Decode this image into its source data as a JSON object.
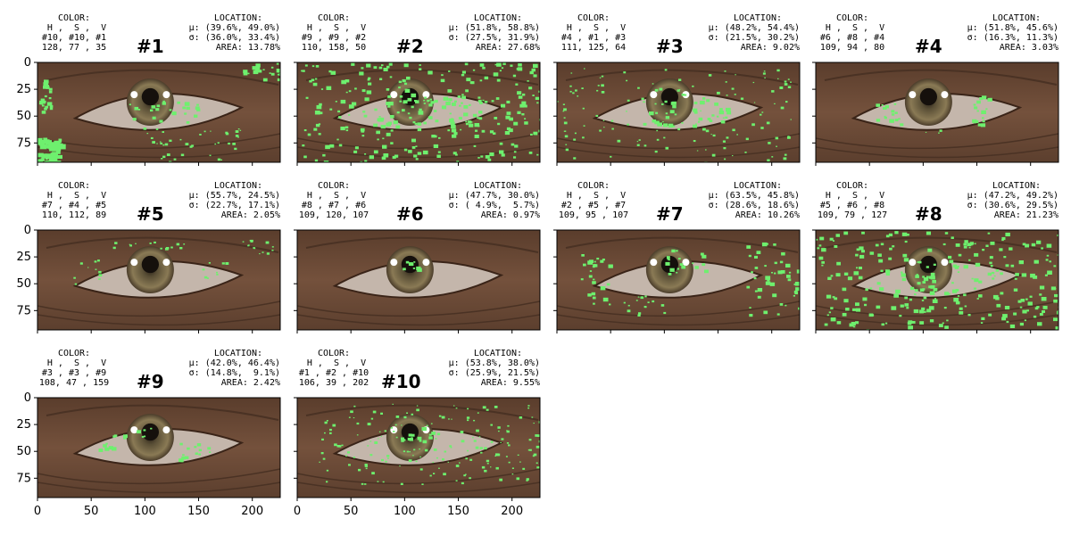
{
  "chart_data": {
    "type": "image-grid",
    "ylim": [
      0,
      93
    ],
    "xlim": [
      0,
      226
    ],
    "yticks": [
      "0",
      "25",
      "50",
      "75"
    ],
    "xticks": [
      "0",
      "50",
      "100",
      "150",
      "200"
    ],
    "highlight_color": "#6ef06e",
    "panels": [
      {
        "title": "#1",
        "color": {
          "header": "COLOR:",
          "hsv": " H ,  S ,  V",
          "bins": "#10, #10, #1",
          "values": "128, 77 , 35"
        },
        "location": {
          "header": "LOCATION:",
          "mu": "μ: (39.6%, 49.0%)",
          "sigma": "σ: (36.0%, 33.4%)",
          "area": "AREA: 13.78%"
        }
      },
      {
        "title": "#2",
        "color": {
          "header": "COLOR:",
          "hsv": " H ,  S ,  V",
          "bins": "#9 , #9 , #2",
          "values": "110, 158, 50"
        },
        "location": {
          "header": "LOCATION:",
          "mu": "μ: (51.8%, 58.8%)",
          "sigma": "σ: (27.5%, 31.9%)",
          "area": "AREA: 27.68%"
        }
      },
      {
        "title": "#3",
        "color": {
          "header": "COLOR:",
          "hsv": " H ,  S ,  V",
          "bins": "#4 , #1 , #3",
          "values": "111, 125, 64"
        },
        "location": {
          "header": "LOCATION:",
          "mu": "μ: (48.2%, 54.4%)",
          "sigma": "σ: (21.5%, 30.2%)",
          "area": "AREA: 9.02%"
        }
      },
      {
        "title": "#4",
        "color": {
          "header": "COLOR:",
          "hsv": " H ,  S ,  V",
          "bins": "#6 , #8 , #4",
          "values": "109, 94 , 80"
        },
        "location": {
          "header": "LOCATION:",
          "mu": "μ: (51.8%, 45.6%)",
          "sigma": "σ: (16.3%, 11.3%)",
          "area": "AREA: 3.03%"
        }
      },
      {
        "title": "#5",
        "color": {
          "header": "COLOR:",
          "hsv": " H ,  S ,  V",
          "bins": "#7 , #4 , #5",
          "values": "110, 112, 89"
        },
        "location": {
          "header": "LOCATION:",
          "mu": "μ: (55.7%, 24.5%)",
          "sigma": "σ: (22.7%, 17.1%)",
          "area": "AREA: 2.05%"
        }
      },
      {
        "title": "#6",
        "color": {
          "header": "COLOR:",
          "hsv": " H ,  S ,  V",
          "bins": "#8 , #7 , #6",
          "values": "109, 120, 107"
        },
        "location": {
          "header": "LOCATION:",
          "mu": "μ: (47.7%, 30.0%)",
          "sigma": "σ: ( 4.9%,  5.7%)",
          "area": "AREA: 0.97%"
        }
      },
      {
        "title": "#7",
        "color": {
          "header": "COLOR:",
          "hsv": " H ,  S ,  V",
          "bins": "#2 , #5 , #7",
          "values": "109, 95 , 107"
        },
        "location": {
          "header": "LOCATION:",
          "mu": "μ: (63.5%, 45.8%)",
          "sigma": "σ: (28.6%, 18.6%)",
          "area": "AREA: 10.26%"
        }
      },
      {
        "title": "#8",
        "color": {
          "header": "COLOR:",
          "hsv": " H ,  S ,  V",
          "bins": "#5 , #6 , #8",
          "values": "109, 79 , 127"
        },
        "location": {
          "header": "LOCATION:",
          "mu": "μ: (47.2%, 49.2%)",
          "sigma": "σ: (30.6%, 29.5%)",
          "area": "AREA: 21.23%"
        }
      },
      {
        "title": "#9",
        "color": {
          "header": "COLOR:",
          "hsv": " H ,  S ,  V",
          "bins": "#3 , #3 , #9",
          "values": "108, 47 , 159"
        },
        "location": {
          "header": "LOCATION:",
          "mu": "μ: (42.0%, 46.4%)",
          "sigma": "σ: (14.8%,  9.1%)",
          "area": "AREA: 2.42%"
        }
      },
      {
        "title": "#10",
        "color": {
          "header": "COLOR:",
          "hsv": " H ,  S ,  V",
          "bins": "#1 , #2 , #10",
          "values": "106, 39 , 202"
        },
        "location": {
          "header": "LOCATION:",
          "mu": "μ: (53.8%, 38.0%)",
          "sigma": "σ: (25.9%, 21.5%)",
          "area": "AREA: 9.55%"
        }
      }
    ]
  }
}
